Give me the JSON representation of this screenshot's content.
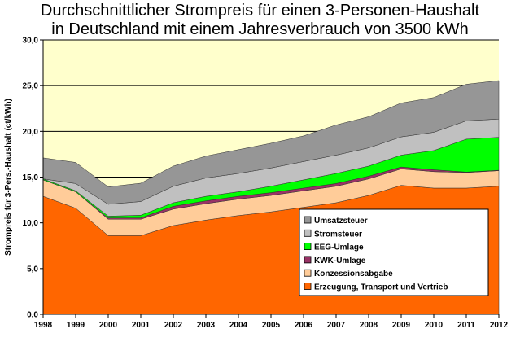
{
  "chart_data": {
    "type": "area",
    "stacked": true,
    "title_line1": "Durchschnittlicher Strompreis für einen 3-Personen-Haushalt",
    "title_line2": "in Deutschland mit einem Jahresverbrauch von 3500 kWh",
    "ylabel": "Strompreis für 3-Pers.-Haushalt (ct/kWh)",
    "xlabel": "",
    "ylim": [
      0,
      30
    ],
    "ytick_labels": [
      "0,0",
      "5,0",
      "10,0",
      "15,0",
      "20,0",
      "25,0",
      "30,0"
    ],
    "ytick_values": [
      0,
      5,
      10,
      15,
      20,
      25,
      30
    ],
    "grid": true,
    "legend_position": "bottom-right",
    "categories": [
      "1998",
      "1999",
      "2000",
      "2001",
      "2002",
      "2003",
      "2004",
      "2005",
      "2006",
      "2007",
      "2008",
      "2009",
      "2010",
      "2011",
      "2012"
    ],
    "series": [
      {
        "name": "Erzeugung, Transport und Vertrieb",
        "color": "#ff6600",
        "values": [
          12.9,
          11.6,
          8.6,
          8.6,
          9.7,
          10.3,
          10.8,
          11.2,
          11.7,
          12.2,
          13.0,
          14.1,
          13.8,
          13.8,
          14.0
        ]
      },
      {
        "name": "Konzessionsabgabe",
        "color": "#ffcc99",
        "values": [
          1.8,
          1.8,
          1.8,
          1.8,
          1.8,
          1.8,
          1.8,
          1.8,
          1.8,
          1.8,
          1.8,
          1.8,
          1.8,
          1.7,
          1.7
        ]
      },
      {
        "name": "KWK-Umlage",
        "color": "#993366",
        "values": [
          0.0,
          0.0,
          0.13,
          0.13,
          0.3,
          0.3,
          0.3,
          0.3,
          0.3,
          0.3,
          0.3,
          0.2,
          0.2,
          0.05,
          0.05
        ]
      },
      {
        "name": "EEG-Umlage",
        "color": "#00ff00",
        "values": [
          0.1,
          0.1,
          0.2,
          0.3,
          0.4,
          0.5,
          0.5,
          0.7,
          0.9,
          1.1,
          1.1,
          1.3,
          2.1,
          3.6,
          3.6
        ]
      },
      {
        "name": "Stromsteuer",
        "color": "#c0c0c0",
        "values": [
          0.0,
          0.8,
          1.3,
          1.5,
          1.8,
          2.0,
          2.0,
          2.0,
          2.0,
          2.0,
          2.0,
          2.0,
          2.0,
          2.0,
          2.0
        ]
      },
      {
        "name": "Umsatzsteuer",
        "color": "#969696",
        "values": [
          2.3,
          2.3,
          1.9,
          2.0,
          2.2,
          2.4,
          2.6,
          2.7,
          2.8,
          3.3,
          3.4,
          3.7,
          3.8,
          4.0,
          4.2
        ]
      }
    ],
    "legend_order": [
      "Umsatzsteuer",
      "Stromsteuer",
      "EEG-Umlage",
      "KWK-Umlage",
      "Konzessionsabgabe",
      "Erzeugung, Transport und Vertrieb"
    ]
  }
}
